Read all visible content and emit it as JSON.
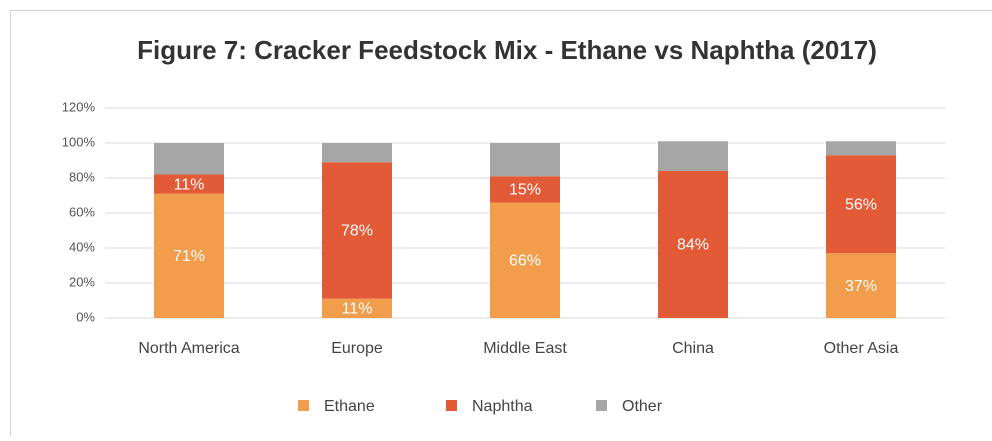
{
  "chart_data": {
    "type": "stacked_bar",
    "title": "Figure 7: Cracker Feedstock Mix - Ethane vs Naphtha (2017)",
    "categories": [
      "North America",
      "Europe",
      "Middle East",
      "China",
      "Other Asia"
    ],
    "series": [
      {
        "name": "Ethane",
        "color": "#f29d4b",
        "values": [
          71,
          11,
          66,
          0,
          37
        ],
        "value_labels": [
          "71%",
          "11%",
          "66%",
          null,
          "37%"
        ]
      },
      {
        "name": "Naphtha",
        "color": "#e25a36",
        "values": [
          11,
          78,
          15,
          84,
          56
        ],
        "value_labels": [
          "11%",
          "78%",
          "15%",
          "84%",
          "56%"
        ]
      },
      {
        "name": "Other",
        "color": "#a6a6a6",
        "values": [
          18,
          11,
          19,
          17,
          8
        ],
        "value_labels": [
          null,
          null,
          null,
          null,
          null
        ]
      }
    ],
    "ylim": [
      0,
      120
    ],
    "yticks": [
      {
        "value": 0,
        "label": "0%"
      },
      {
        "value": 20,
        "label": "20%"
      },
      {
        "value": 40,
        "label": "40%"
      },
      {
        "value": 60,
        "label": "60%"
      },
      {
        "value": 80,
        "label": "80%"
      },
      {
        "value": 100,
        "label": "100%"
      },
      {
        "value": 120,
        "label": "120%"
      }
    ],
    "grid": true,
    "legend": "bottom"
  }
}
